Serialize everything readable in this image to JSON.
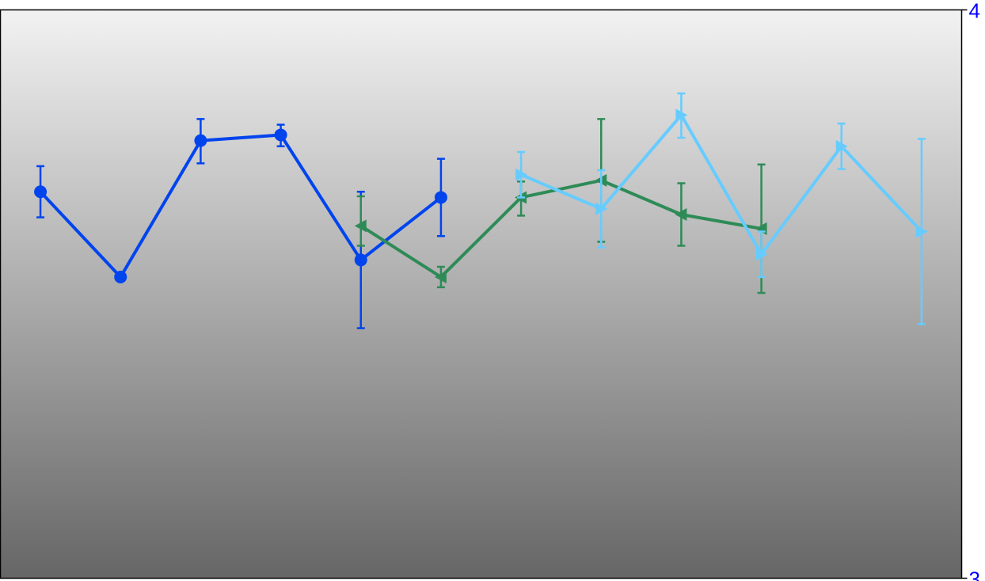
{
  "chart_data": {
    "type": "line",
    "title": "",
    "xlabel": "",
    "ylabel": "",
    "grid": false,
    "legend": "none",
    "xlim": [
      0.5,
      12.5
    ],
    "ylim": [
      3,
      4
    ],
    "y_ticks": [
      {
        "value": 4,
        "label": "4"
      },
      {
        "value": 3,
        "label": "3"
      }
    ],
    "tick_color": "#0000ff",
    "background_gradient": {
      "top": "#f2f2f2",
      "bottom": "#666666"
    },
    "series": [
      {
        "color": "#0044ee",
        "marker": "circle",
        "x": [
          1,
          2,
          3,
          4,
          5,
          6
        ],
        "y": [
          3.68,
          3.53,
          3.77,
          3.78,
          3.56,
          3.67
        ],
        "err_low": [
          0.045,
          0,
          0.04,
          0.02,
          0.12,
          0.068
        ],
        "err_high": [
          0.045,
          0,
          0.038,
          0.018,
          0.12,
          0.068
        ]
      },
      {
        "color": "#2e8b57",
        "marker": "triangle-left",
        "x": [
          5,
          6,
          7,
          8,
          9,
          10
        ],
        "y": [
          3.62,
          3.53,
          3.67,
          3.7,
          3.64,
          3.615
        ],
        "err_low": [
          0.035,
          0.018,
          0.032,
          0.108,
          0.055,
          0.113
        ],
        "err_high": [
          0.052,
          0.018,
          0.028,
          0.108,
          0.055,
          0.113
        ]
      },
      {
        "color": "#66ccff",
        "marker": "triangle-right",
        "x": [
          7,
          8,
          9,
          10,
          11,
          12
        ],
        "y": [
          3.71,
          3.65,
          3.815,
          3.57,
          3.76,
          3.61
        ],
        "err_low": [
          0.04,
          0.068,
          0.04,
          0.04,
          0.04,
          0.163
        ],
        "err_high": [
          0.04,
          0.068,
          0.038,
          0.04,
          0.04,
          0.163
        ]
      }
    ]
  }
}
